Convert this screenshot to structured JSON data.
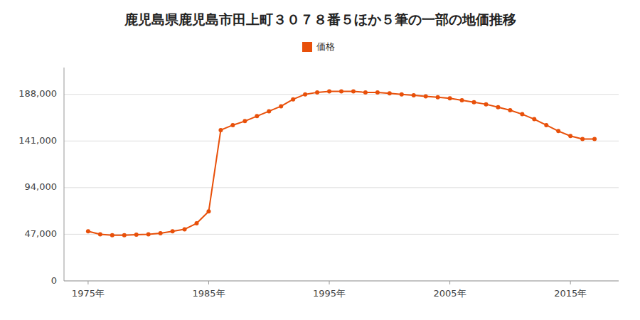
{
  "chart_data": {
    "type": "line",
    "title": "鹿児島県鹿児島市田上町３０７８番５ほか５筆の一部の地価推移",
    "x": [
      1975,
      1976,
      1977,
      1978,
      1979,
      1980,
      1981,
      1982,
      1983,
      1984,
      1985,
      1986,
      1987,
      1988,
      1989,
      1990,
      1991,
      1992,
      1993,
      1994,
      1995,
      1996,
      1997,
      1998,
      1999,
      2000,
      2001,
      2002,
      2003,
      2004,
      2005,
      2006,
      2007,
      2008,
      2009,
      2010,
      2011,
      2012,
      2013,
      2014,
      2015,
      2016,
      2017
    ],
    "series": [
      {
        "name": "価格",
        "color": "#E8500A",
        "marker": "circle",
        "values": [
          50000,
          47000,
          46000,
          46000,
          46500,
          47000,
          48000,
          50000,
          52000,
          58000,
          70000,
          152000,
          157000,
          161000,
          166000,
          171000,
          176000,
          183000,
          188000,
          190000,
          191000,
          191000,
          191000,
          190000,
          190000,
          189000,
          188000,
          187000,
          186000,
          185000,
          184000,
          182000,
          180000,
          178000,
          175000,
          172000,
          168000,
          163000,
          157000,
          151000,
          146000,
          143000,
          143000
        ]
      }
    ],
    "xlim": [
      1973,
      2019
    ],
    "xticks": [
      {
        "value": 1975,
        "label": "1975年"
      },
      {
        "value": 1985,
        "label": "1985年"
      },
      {
        "value": 1995,
        "label": "1995年"
      },
      {
        "value": 2005,
        "label": "2005年"
      },
      {
        "value": 2015,
        "label": "2015年"
      }
    ],
    "ylim": [
      0,
      215000
    ],
    "yticks": [
      0,
      {
        "value": 47000,
        "label": "47,000"
      },
      {
        "value": 94000,
        "label": "94,000"
      },
      {
        "value": 141000,
        "label": "141,000"
      },
      {
        "value": 188000,
        "label": "188,000"
      }
    ],
    "grid": true,
    "legend": "top"
  }
}
